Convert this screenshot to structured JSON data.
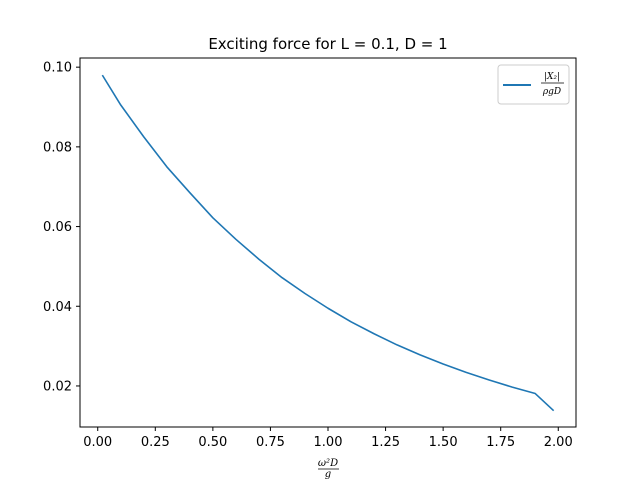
{
  "chart_data": {
    "type": "line",
    "title": "Exciting force for L = 0.1, D = 1",
    "xlabel": {
      "numerator": "ω²D",
      "denominator": "g"
    },
    "ylabel": "",
    "xlim": [
      -0.077,
      2.077
    ],
    "ylim": [
      0.0097,
      0.1023
    ],
    "x_ticks": [
      0.0,
      0.25,
      0.5,
      0.75,
      1.0,
      1.25,
      1.5,
      1.75,
      2.0
    ],
    "x_tick_labels": [
      "0.00",
      "0.25",
      "0.50",
      "0.75",
      "1.00",
      "1.25",
      "1.50",
      "1.75",
      "2.00"
    ],
    "y_ticks": [
      0.02,
      0.04,
      0.06,
      0.08,
      0.1
    ],
    "y_tick_labels": [
      "0.02",
      "0.04",
      "0.06",
      "0.08",
      "0.10"
    ],
    "grid": false,
    "legend_position": "top-right",
    "series": [
      {
        "name": "|X₂| / ρgD",
        "legend_numerator": "|X₂|",
        "legend_denominator": "ρgD",
        "color": "#1f77b4",
        "x": [
          0.02,
          0.1,
          0.2,
          0.3,
          0.4,
          0.5,
          0.6,
          0.7,
          0.8,
          0.9,
          1.0,
          1.1,
          1.2,
          1.3,
          1.4,
          1.5,
          1.6,
          1.7,
          1.8,
          1.9,
          1.98
        ],
        "y": [
          0.098,
          0.0905,
          0.0825,
          0.075,
          0.0685,
          0.0622,
          0.0568,
          0.0518,
          0.0472,
          0.0432,
          0.0395,
          0.0361,
          0.0331,
          0.0303,
          0.0278,
          0.0255,
          0.0234,
          0.0215,
          0.0197,
          0.0181,
          0.0138
        ]
      }
    ]
  }
}
